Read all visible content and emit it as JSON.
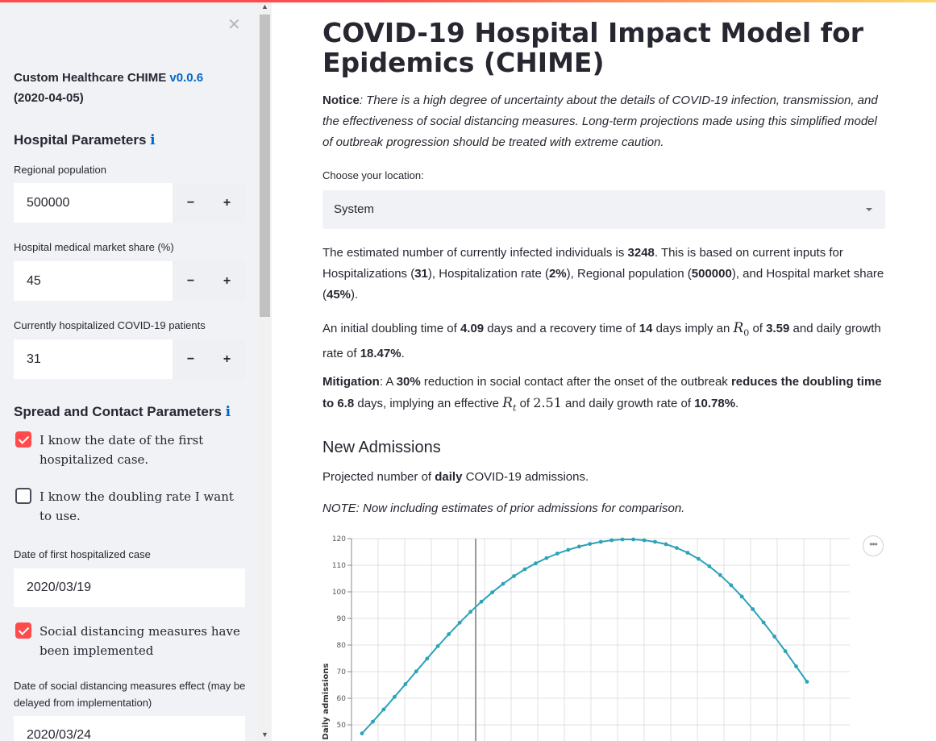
{
  "sidebar": {
    "close_glyph": "✕",
    "app_name": "Custom Healthcare CHIME",
    "version": "v0.0.6",
    "date": "(2020-04-05)",
    "hospital_header": "Hospital Parameters",
    "info_glyph": "i",
    "regional_population": {
      "label": "Regional population",
      "value": "500000"
    },
    "market_share": {
      "label": "Hospital medical market share (%)",
      "value": "45"
    },
    "hospitalized": {
      "label": "Currently hospitalized COVID-19 patients",
      "value": "31"
    },
    "minus": "−",
    "plus": "+",
    "spread_header": "Spread and Contact Parameters",
    "chk_first_case": {
      "label": "I know the date of the first hospitalized case.",
      "checked": true
    },
    "chk_doubling": {
      "label": "I know the doubling rate I want to use.",
      "checked": false
    },
    "first_case_date": {
      "label": "Date of first hospitalized case",
      "value": "2020/03/19"
    },
    "chk_distancing": {
      "label": "Social distancing measures have been implemented",
      "checked": true
    },
    "distancing_date": {
      "label": "Date of social distancing measures effect (may be delayed from implementation)",
      "value": "2020/03/24"
    }
  },
  "main": {
    "title": "COVID-19 Hospital Impact Model for Epidemics (CHIME)",
    "notice_label": "Notice",
    "notice_text": ": There is a high degree of uncertainty about the details of COVID-19 infection, transmission, and the effectiveness of social distancing measures. Long-term projections made using this simplified model of outbreak progression should be treated with extreme caution.",
    "location_label": "Choose your location:",
    "location_value": "System",
    "infected": {
      "p1": "The estimated number of currently infected individuals is ",
      "count": "3248",
      "p2": ". This is based on current inputs for Hospitalizations (",
      "hosp": "31",
      "p3": "), Hospitalization rate (",
      "rate": "2%",
      "p4": "), Regional population (",
      "pop": "500000",
      "p5": "), and Hospital market share (",
      "share": "45%",
      "p6": ")."
    },
    "doubling": {
      "p1": "An initial doubling time of ",
      "dt": "4.09",
      "p2": " days and a recovery time of ",
      "rt": "14",
      "p3": " days imply an ",
      "r0_symbol": "R",
      "r0_sub": "0",
      "p4": " of ",
      "r0": "3.59",
      "p5": " and daily growth rate of ",
      "growth": "18.47%",
      "p6": "."
    },
    "mitigation": {
      "label": "Mitigation",
      "p1": ": A ",
      "pct": "30%",
      "p2": " reduction in social contact after the onset of the outbreak ",
      "bold": "reduces the doubling time to 6.8",
      "p3": " days, implying an effective ",
      "rt_symbol": "R",
      "rt_sub": "t",
      "p4": " of ",
      "rt": "2.51",
      "p5": " and daily growth rate of ",
      "growth": "10.78%",
      "p6": "."
    },
    "admissions_header": "New Admissions",
    "projected": {
      "p1": "Projected number of ",
      "bold": "daily",
      "p2": " COVID-19 admissions."
    },
    "note": "NOTE: Now including estimates of prior admissions for comparison.",
    "more_glyph": "•••"
  },
  "chart_data": {
    "type": "line",
    "title": "",
    "xlabel": "",
    "ylabel": "Daily admissions",
    "ylim": [
      45,
      120
    ],
    "yticks": [
      50,
      60,
      70,
      80,
      90,
      100,
      110,
      120
    ],
    "grid": true,
    "series_color": "#2ca3b8",
    "x": [
      -5,
      -4,
      -3,
      -2,
      -1,
      0,
      1,
      2,
      3,
      4,
      5,
      6,
      7,
      8,
      9,
      10,
      11,
      12,
      13,
      14,
      15,
      16,
      17,
      18,
      19,
      20,
      21,
      22,
      23,
      24,
      25,
      26,
      27,
      28,
      29,
      30,
      31,
      32,
      33,
      34,
      35,
      36
    ],
    "series": [
      {
        "values": [
          46.8,
          51.2,
          55.8,
          60.5,
          65.3,
          70.1,
          74.9,
          79.6,
          84.1,
          88.4,
          92.5,
          96.3,
          99.8,
          103.0,
          105.9,
          108.5,
          110.7,
          112.7,
          114.4,
          115.8,
          117.0,
          118.0,
          118.8,
          119.4,
          119.7,
          119.7,
          119.4,
          118.8,
          117.9,
          116.5,
          114.7,
          112.4,
          109.6,
          106.3,
          102.5,
          98.2,
          93.5,
          88.5,
          83.2,
          77.7,
          72.0,
          66.2
        ]
      }
    ]
  }
}
